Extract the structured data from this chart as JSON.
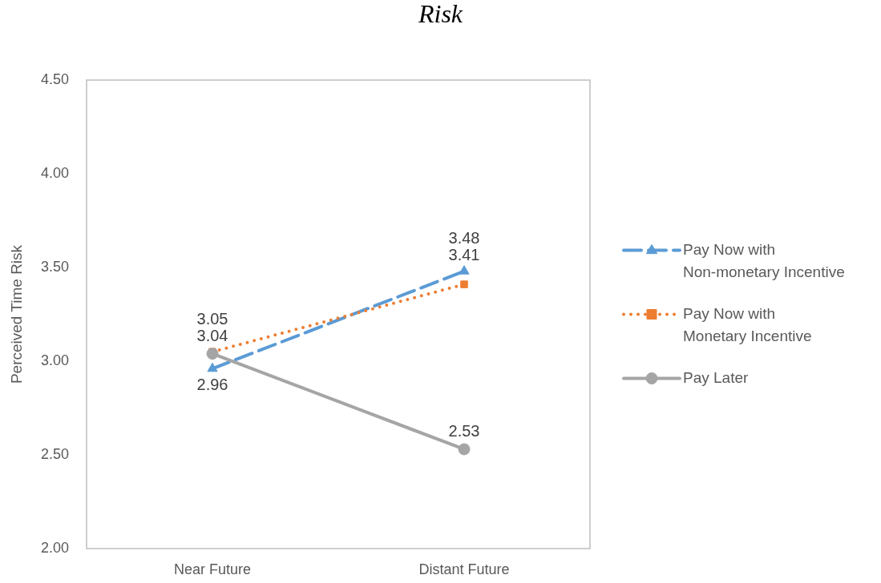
{
  "chart_data": {
    "type": "line",
    "title": "Risk",
    "ylabel": "Perceived Time Risk",
    "categories": [
      "Near Future",
      "Distant Future"
    ],
    "series": [
      {
        "name": "Pay Now with Non-monetary Incentive",
        "color": "#5b9bd5",
        "values": [
          2.96,
          3.48
        ],
        "marker": "triangle",
        "line_style": "dashed"
      },
      {
        "name": "Pay Now with Monetary Incentive",
        "color": "#ed7d31",
        "values": [
          3.05,
          3.41
        ],
        "marker": "square",
        "line_style": "dotted"
      },
      {
        "name": "Pay Later",
        "color": "#a5a5a5",
        "values": [
          3.04,
          2.53
        ],
        "marker": "circle",
        "line_style": "solid"
      }
    ],
    "ylim": [
      2,
      4.5
    ],
    "yticks": [
      {
        "value": 2,
        "label": "2.00"
      },
      {
        "value": 2.5,
        "label": "2.50"
      },
      {
        "value": 3,
        "label": "3.00"
      },
      {
        "value": 3.5,
        "label": "3.50"
      },
      {
        "value": 4,
        "label": "4.00"
      },
      {
        "value": 4.5,
        "label": "4.50"
      }
    ],
    "legend": "right",
    "data_labels": true
  }
}
